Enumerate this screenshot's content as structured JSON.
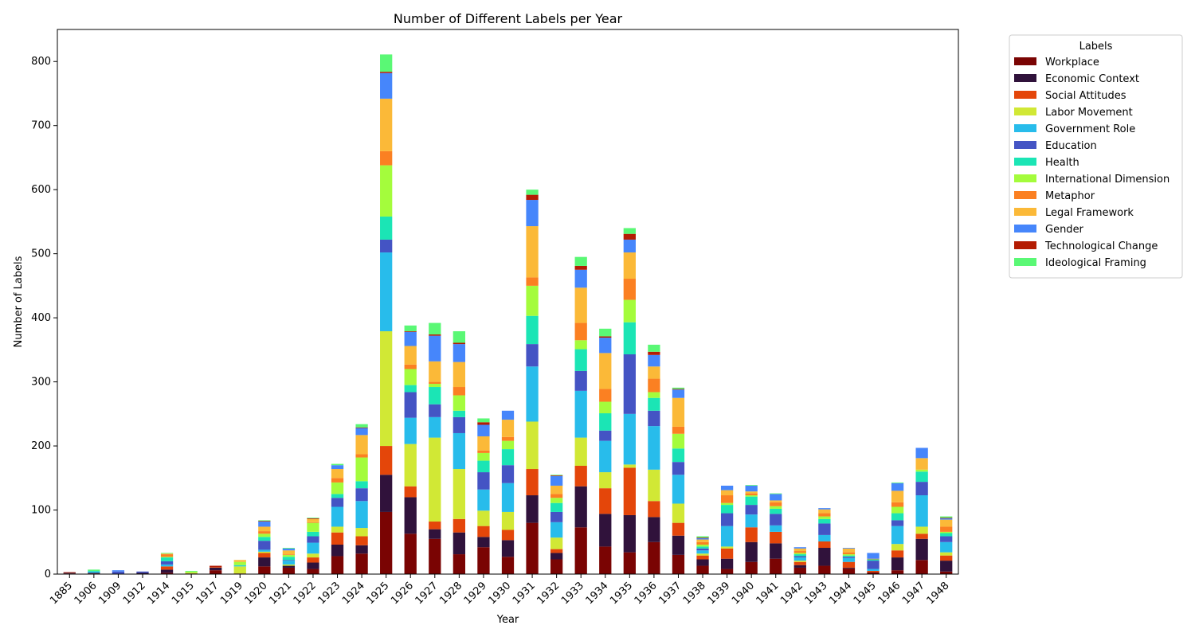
{
  "chart_data": {
    "type": "bar",
    "stacked": true,
    "title": "Number of Different Labels per Year",
    "xlabel": "Year",
    "ylabel": "Number of Labels",
    "ylim": [
      0,
      850
    ],
    "yticks": [
      0,
      100,
      200,
      300,
      400,
      500,
      600,
      700,
      800
    ],
    "grid": false,
    "legend": {
      "title": "Labels",
      "placement": "outside-right"
    },
    "categories": [
      "1885",
      "1906",
      "1909",
      "1912",
      "1914",
      "1915",
      "1917",
      "1919",
      "1920",
      "1921",
      "1922",
      "1923",
      "1924",
      "1925",
      "1926",
      "1927",
      "1928",
      "1929",
      "1930",
      "1931",
      "1932",
      "1933",
      "1934",
      "1935",
      "1936",
      "1937",
      "1938",
      "1939",
      "1940",
      "1941",
      "1942",
      "1943",
      "1944",
      "1945",
      "1946",
      "1947",
      "1948"
    ],
    "series": [
      {
        "name": "Workplace",
        "color": "#7a0403",
        "values": [
          1,
          1,
          0,
          0,
          2,
          1,
          6,
          1,
          12,
          10,
          8,
          28,
          32,
          97,
          63,
          55,
          31,
          42,
          27,
          80,
          23,
          73,
          43,
          34,
          50,
          30,
          13,
          8,
          19,
          24,
          10,
          13,
          9,
          3,
          6,
          22,
          4
        ]
      },
      {
        "name": "Economic Context",
        "color": "#30123b",
        "values": [
          1,
          1,
          0,
          2,
          5,
          0,
          4,
          0,
          14,
          3,
          10,
          18,
          13,
          58,
          57,
          15,
          34,
          16,
          26,
          43,
          10,
          64,
          51,
          58,
          39,
          30,
          10,
          16,
          31,
          24,
          4,
          28,
          1,
          0,
          20,
          33,
          17
        ]
      },
      {
        "name": "Social Attitudes",
        "color": "#e4460a",
        "values": [
          0,
          0,
          0,
          0,
          5,
          0,
          1,
          0,
          7,
          0,
          8,
          19,
          14,
          45,
          17,
          12,
          21,
          17,
          16,
          41,
          6,
          32,
          40,
          74,
          25,
          20,
          6,
          16,
          23,
          18,
          5,
          10,
          9,
          2,
          11,
          8,
          8
        ]
      },
      {
        "name": "Labor Movement",
        "color": "#d1e835",
        "values": [
          0,
          0,
          0,
          0,
          0,
          1,
          0,
          11,
          2,
          2,
          6,
          9,
          13,
          179,
          66,
          131,
          78,
          24,
          28,
          74,
          18,
          44,
          25,
          5,
          49,
          30,
          3,
          3,
          0,
          0,
          2,
          0,
          0,
          0,
          10,
          11,
          5
        ]
      },
      {
        "name": "Government Role",
        "color": "#28bceb",
        "values": [
          0,
          2,
          0,
          0,
          3,
          0,
          0,
          1,
          3,
          6,
          17,
          31,
          42,
          123,
          41,
          32,
          56,
          33,
          45,
          86,
          24,
          73,
          49,
          79,
          68,
          45,
          5,
          32,
          20,
          10,
          5,
          10,
          6,
          3,
          28,
          49,
          16
        ]
      },
      {
        "name": "Education",
        "color": "#4454c4",
        "values": [
          0,
          0,
          4,
          2,
          5,
          0,
          0,
          0,
          14,
          1,
          10,
          14,
          20,
          20,
          40,
          20,
          25,
          27,
          28,
          35,
          16,
          31,
          16,
          93,
          24,
          20,
          3,
          20,
          15,
          18,
          2,
          18,
          2,
          13,
          9,
          21,
          9
        ]
      },
      {
        "name": "Health",
        "color": "#1be5b5",
        "values": [
          0,
          1,
          0,
          0,
          6,
          0,
          0,
          1,
          6,
          5,
          7,
          6,
          11,
          36,
          11,
          27,
          10,
          18,
          25,
          44,
          14,
          34,
          27,
          50,
          20,
          21,
          3,
          13,
          13,
          8,
          3,
          7,
          2,
          2,
          11,
          16,
          5
        ]
      },
      {
        "name": "International Dimension",
        "color": "#a4fc3c",
        "values": [
          0,
          0,
          0,
          0,
          1,
          2,
          0,
          5,
          5,
          3,
          14,
          18,
          37,
          80,
          25,
          5,
          24,
          12,
          13,
          47,
          8,
          14,
          18,
          35,
          9,
          23,
          3,
          3,
          2,
          4,
          2,
          4,
          2,
          0,
          10,
          3,
          2
        ]
      },
      {
        "name": "Metaphor",
        "color": "#fb8022",
        "values": [
          0,
          0,
          0,
          0,
          4,
          0,
          0,
          0,
          4,
          1,
          1,
          7,
          5,
          22,
          7,
          3,
          13,
          4,
          6,
          13,
          6,
          27,
          20,
          33,
          21,
          11,
          4,
          12,
          3,
          6,
          3,
          5,
          3,
          1,
          7,
          0,
          8
        ]
      },
      {
        "name": "Legal Framework",
        "color": "#fbb938",
        "values": [
          0,
          0,
          0,
          0,
          1,
          0,
          0,
          3,
          7,
          6,
          5,
          14,
          30,
          82,
          29,
          32,
          39,
          22,
          27,
          80,
          13,
          55,
          56,
          41,
          19,
          45,
          4,
          8,
          3,
          3,
          4,
          6,
          6,
          0,
          18,
          18,
          11
        ]
      },
      {
        "name": "Gender",
        "color": "#4686fb",
        "values": [
          0,
          0,
          2,
          0,
          0,
          0,
          0,
          0,
          8,
          3,
          0,
          6,
          11,
          40,
          22,
          40,
          28,
          18,
          14,
          41,
          15,
          28,
          24,
          20,
          18,
          13,
          2,
          7,
          9,
          10,
          2,
          2,
          1,
          9,
          12,
          16,
          2
        ]
      },
      {
        "name": "Technological Change",
        "color": "#b41c03",
        "values": [
          1,
          0,
          0,
          0,
          0,
          0,
          2,
          0,
          1,
          0,
          1,
          0,
          1,
          2,
          1,
          2,
          2,
          4,
          0,
          8,
          1,
          6,
          2,
          9,
          5,
          1,
          1,
          0,
          0,
          0,
          0,
          0,
          0,
          0,
          0,
          0,
          1
        ]
      },
      {
        "name": "Ideological Framing",
        "color": "#5af875",
        "values": [
          0,
          2,
          0,
          0,
          1,
          1,
          0,
          0,
          1,
          1,
          1,
          2,
          5,
          27,
          9,
          18,
          18,
          6,
          0,
          8,
          1,
          14,
          12,
          9,
          11,
          2,
          2,
          0,
          1,
          1,
          0,
          0,
          0,
          0,
          1,
          0,
          2
        ]
      }
    ]
  }
}
